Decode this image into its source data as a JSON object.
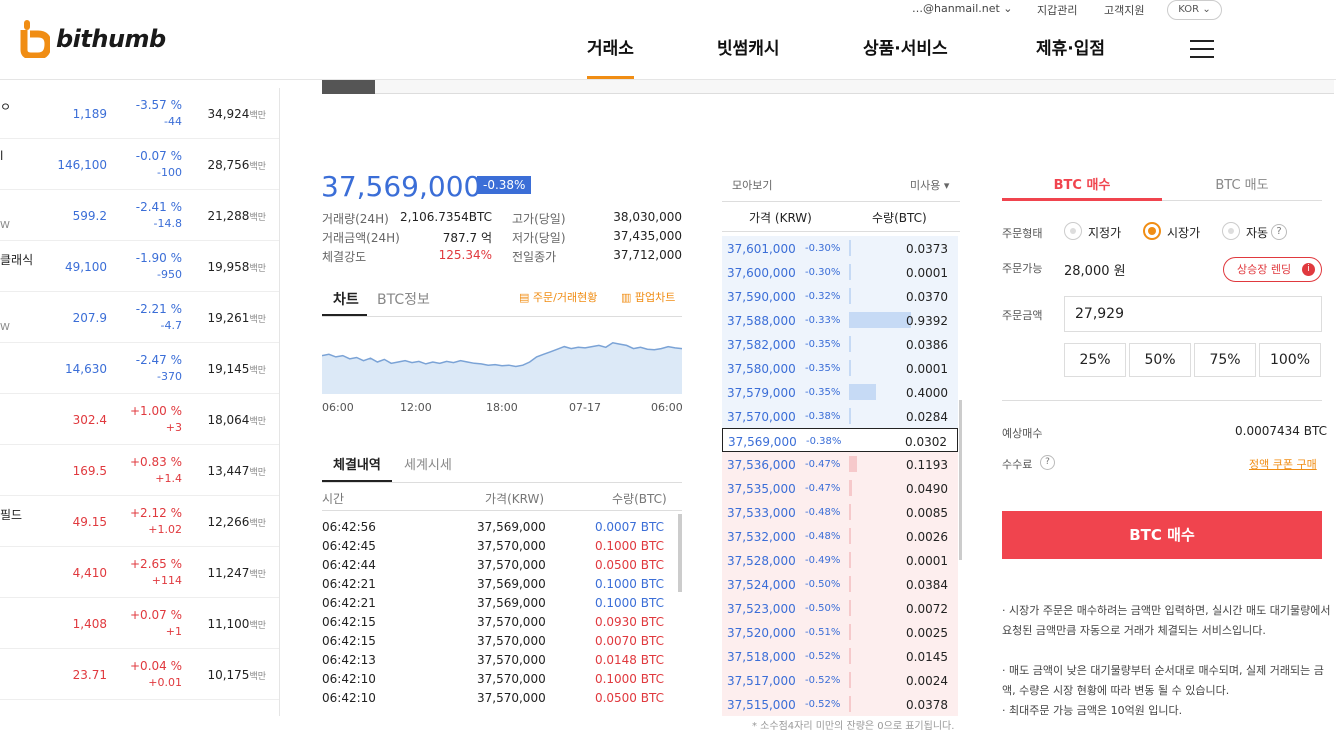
{
  "header": {
    "logo": "bithumb",
    "nav": [
      "거래소",
      "빗썸캐시",
      "상품·서비스",
      "제휴·입점"
    ],
    "user_email": "…@hanmail.net",
    "util": [
      "지갑관리",
      "고객지원"
    ],
    "lang": "KOR"
  },
  "coins": [
    {
      "name": "ㅇ",
      "sub": "",
      "price": "1,189",
      "pct": "-3.57 %",
      "chg": "-44",
      "vol": "34,924",
      "unit": "백만",
      "dir": "dn"
    },
    {
      "name": "l",
      "sub": "",
      "price": "146,100",
      "pct": "-0.07 %",
      "chg": "-100",
      "vol": "28,756",
      "unit": "백만",
      "dir": "dn"
    },
    {
      "name": "",
      "sub": "W",
      "price": "599.2",
      "pct": "-2.41 %",
      "chg": "-14.8",
      "vol": "21,288",
      "unit": "백만",
      "dir": "dn"
    },
    {
      "name": "클래식",
      "sub": "",
      "price": "49,100",
      "pct": "-1.90 %",
      "chg": "-950",
      "vol": "19,958",
      "unit": "백만",
      "dir": "dn"
    },
    {
      "name": "",
      "sub": "W",
      "price": "207.9",
      "pct": "-2.21 %",
      "chg": "-4.7",
      "vol": "19,261",
      "unit": "백만",
      "dir": "dn"
    },
    {
      "name": "",
      "sub": "",
      "price": "14,630",
      "pct": "-2.47 %",
      "chg": "-370",
      "vol": "19,145",
      "unit": "백만",
      "dir": "dn"
    },
    {
      "name": "",
      "sub": "",
      "price": "302.4",
      "pct": "+1.00 %",
      "chg": "+3",
      "vol": "18,064",
      "unit": "백만",
      "dir": "up"
    },
    {
      "name": "",
      "sub": "",
      "price": "169.5",
      "pct": "+0.83 %",
      "chg": "+1.4",
      "vol": "13,447",
      "unit": "백만",
      "dir": "up"
    },
    {
      "name": "필드",
      "sub": "",
      "price": "49.15",
      "pct": "+2.12 %",
      "chg": "+1.02",
      "vol": "12,266",
      "unit": "백만",
      "dir": "up"
    },
    {
      "name": "",
      "sub": "",
      "price": "4,410",
      "pct": "+2.65 %",
      "chg": "+114",
      "vol": "11,247",
      "unit": "백만",
      "dir": "up"
    },
    {
      "name": "",
      "sub": "",
      "price": "1,408",
      "pct": "+0.07 %",
      "chg": "+1",
      "vol": "11,100",
      "unit": "백만",
      "dir": "up"
    },
    {
      "name": "",
      "sub": "",
      "price": "23.71",
      "pct": "+0.04 %",
      "chg": "+0.01",
      "vol": "10,175",
      "unit": "백만",
      "dir": "up"
    }
  ],
  "ticker": {
    "price": "37,569,000",
    "pct": "-0.38%",
    "stats_left": [
      {
        "k": "거래량(24H)",
        "v": "2,106.7354BTC"
      },
      {
        "k": "거래금액(24H)",
        "v": "787.7 억"
      },
      {
        "k": "체결강도",
        "v": "125.34%"
      }
    ],
    "stats_right": [
      {
        "k": "고가(당일)",
        "v": "38,030,000"
      },
      {
        "k": "저가(당일)",
        "v": "37,435,000"
      },
      {
        "k": "전일종가",
        "v": "37,712,000"
      }
    ]
  },
  "chart_tabs": {
    "chart": "차트",
    "info": "BTC정보",
    "order_link": "주문/거래현황",
    "popup_link": "팝업차트"
  },
  "chart_data": {
    "type": "area",
    "x_ticks": [
      "06:00",
      "12:00",
      "18:00",
      "07-17",
      "06:00"
    ],
    "values": [
      0.6,
      0.62,
      0.58,
      0.6,
      0.55,
      0.57,
      0.52,
      0.56,
      0.5,
      0.54,
      0.48,
      0.5,
      0.52,
      0.49,
      0.51,
      0.47,
      0.5,
      0.48,
      0.51,
      0.49,
      0.52,
      0.5,
      0.48,
      0.47,
      0.45,
      0.46,
      0.44,
      0.45,
      0.43,
      0.45,
      0.5,
      0.58,
      0.62,
      0.66,
      0.7,
      0.74,
      0.71,
      0.73,
      0.72,
      0.74,
      0.76,
      0.73,
      0.8,
      0.78,
      0.76,
      0.71,
      0.73,
      0.7,
      0.69,
      0.71,
      0.74,
      0.72,
      0.71
    ]
  },
  "trades": {
    "tabs": [
      "체결내역",
      "세계시세"
    ],
    "headers": [
      "시간",
      "가격(KRW)",
      "수량(BTC)"
    ],
    "rows": [
      {
        "t": "06:42:56",
        "p": "37,569,000",
        "q": "0.0007 BTC",
        "dir": "dn"
      },
      {
        "t": "06:42:45",
        "p": "37,570,000",
        "q": "0.1000 BTC",
        "dir": "up"
      },
      {
        "t": "06:42:44",
        "p": "37,570,000",
        "q": "0.0500 BTC",
        "dir": "up"
      },
      {
        "t": "06:42:21",
        "p": "37,569,000",
        "q": "0.1000 BTC",
        "dir": "dn"
      },
      {
        "t": "06:42:21",
        "p": "37,569,000",
        "q": "0.1000 BTC",
        "dir": "dn"
      },
      {
        "t": "06:42:15",
        "p": "37,570,000",
        "q": "0.0930 BTC",
        "dir": "up"
      },
      {
        "t": "06:42:15",
        "p": "37,570,000",
        "q": "0.0070 BTC",
        "dir": "up"
      },
      {
        "t": "06:42:13",
        "p": "37,570,000",
        "q": "0.0148 BTC",
        "dir": "up"
      },
      {
        "t": "06:42:10",
        "p": "37,570,000",
        "q": "0.1000 BTC",
        "dir": "up"
      },
      {
        "t": "06:42:10",
        "p": "37,570,000",
        "q": "0.0500 BTC",
        "dir": "up"
      }
    ]
  },
  "orderbook": {
    "view": "모아보기",
    "unused": "미사용 ▾",
    "headers": [
      "가격 (KRW)",
      "수량(BTC)"
    ],
    "asks": [
      {
        "p": "37,601,000",
        "c": "-0.30%",
        "q": "0.0373",
        "fill": 0.04
      },
      {
        "p": "37,600,000",
        "c": "-0.30%",
        "q": "0.0001",
        "fill": 0.01
      },
      {
        "p": "37,590,000",
        "c": "-0.32%",
        "q": "0.0370",
        "fill": 0.04
      },
      {
        "p": "37,588,000",
        "c": "-0.33%",
        "q": "0.9392",
        "fill": 1.0
      },
      {
        "p": "37,582,000",
        "c": "-0.35%",
        "q": "0.0386",
        "fill": 0.04
      },
      {
        "p": "37,580,000",
        "c": "-0.35%",
        "q": "0.0001",
        "fill": 0.01
      },
      {
        "p": "37,579,000",
        "c": "-0.35%",
        "q": "0.4000",
        "fill": 0.43
      },
      {
        "p": "37,570,000",
        "c": "-0.38%",
        "q": "0.0284",
        "fill": 0.03
      }
    ],
    "current": {
      "p": "37,569,000",
      "c": "-0.38%",
      "q": "0.0302"
    },
    "bids": [
      {
        "p": "37,536,000",
        "c": "-0.47%",
        "q": "0.1193",
        "fill": 0.13
      },
      {
        "p": "37,535,000",
        "c": "-0.47%",
        "q": "0.0490",
        "fill": 0.05
      },
      {
        "p": "37,533,000",
        "c": "-0.48%",
        "q": "0.0085",
        "fill": 0.01
      },
      {
        "p": "37,532,000",
        "c": "-0.48%",
        "q": "0.0026",
        "fill": 0.01
      },
      {
        "p": "37,528,000",
        "c": "-0.49%",
        "q": "0.0001",
        "fill": 0.01
      },
      {
        "p": "37,524,000",
        "c": "-0.50%",
        "q": "0.0384",
        "fill": 0.04
      },
      {
        "p": "37,523,000",
        "c": "-0.50%",
        "q": "0.0072",
        "fill": 0.01
      },
      {
        "p": "37,520,000",
        "c": "-0.51%",
        "q": "0.0025",
        "fill": 0.01
      },
      {
        "p": "37,518,000",
        "c": "-0.52%",
        "q": "0.0145",
        "fill": 0.02
      },
      {
        "p": "37,517,000",
        "c": "-0.52%",
        "q": "0.0024",
        "fill": 0.01
      },
      {
        "p": "37,515,000",
        "c": "-0.52%",
        "q": "0.0378",
        "fill": 0.04
      }
    ],
    "footnote": "* 소수점4자리 미만의 잔량은 0으로 표기됩니다."
  },
  "order": {
    "tab_buy": "BTC 매수",
    "tab_sell": "BTC 매도",
    "type_label": "주문형태",
    "types": [
      "지정가",
      "시장가",
      "자동"
    ],
    "avail_label": "주문가능",
    "avail": "28,000 원",
    "rental": "상승장 렌딩",
    "amount_label": "주문금액",
    "amount": "27,929",
    "quick": [
      "25%",
      "50%",
      "75%",
      "100%"
    ],
    "expected_label": "예상매수",
    "expected": "0.0007434 BTC",
    "fee_label": "수수료",
    "coupon": "정액 쿠폰 구매",
    "submit": "BTC 매수",
    "notes": [
      "시장가 주문은 매수하려는 금액만 입력하면, 실시간 매도 대기물량에서 요청된 금액만큼 자동으로 거래가 체결되는 서비스입니다.",
      "매도 금액이 낮은 대기물량부터 순서대로 매수되며, 실제 거래되는 금액, 수량은 시장 현황에 따라 변동 될 수 있습니다.",
      "최대주문 가능 금액은 10억원 입니다."
    ]
  },
  "colors": {
    "up": "#e0393e",
    "down": "#3b6ed7",
    "accent": "#f08d14",
    "buy": "#f0444e"
  }
}
